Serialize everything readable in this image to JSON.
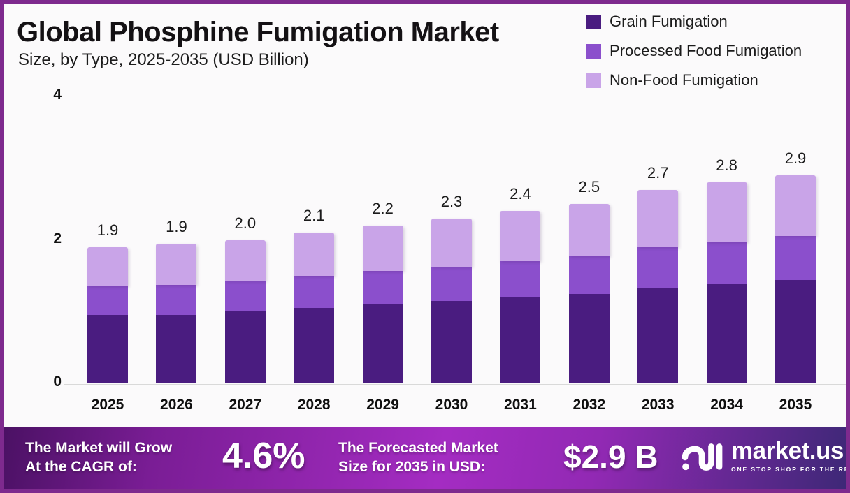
{
  "page": {
    "border_color": "#7E2A8E",
    "background": "#FBFAFB"
  },
  "header": {
    "title": "Global Phosphine Fumigation Market",
    "subtitle": "Size, by Type, 2025-2035 (USD Billion)"
  },
  "chart_data": {
    "type": "bar",
    "stacked": true,
    "title": "Global Phosphine Fumigation Market Size, by Type, 2025-2035 (USD Billion)",
    "categories": [
      "2025",
      "2026",
      "2027",
      "2028",
      "2029",
      "2030",
      "2031",
      "2032",
      "2033",
      "2034",
      "2035"
    ],
    "series": [
      {
        "name": "Grain Fumigation",
        "color": "#4A1C80",
        "values": [
          0.95,
          0.95,
          1.0,
          1.05,
          1.1,
          1.15,
          1.2,
          1.25,
          1.33,
          1.38,
          1.44
        ]
      },
      {
        "name": "Processed Food Fumigation",
        "color": "#8B4FCC",
        "values": [
          0.4,
          0.42,
          0.43,
          0.45,
          0.47,
          0.48,
          0.5,
          0.52,
          0.57,
          0.59,
          0.61
        ]
      },
      {
        "name": "Non-Food Fumigation",
        "color": "#C9A4E8",
        "values": [
          0.55,
          0.58,
          0.57,
          0.6,
          0.63,
          0.67,
          0.7,
          0.73,
          0.8,
          0.83,
          0.85
        ]
      }
    ],
    "total_labels": [
      "1.9",
      "1.9",
      "2.0",
      "2.1",
      "2.2",
      "2.3",
      "2.4",
      "2.5",
      "2.7",
      "2.8",
      "2.9"
    ],
    "xlabel": "",
    "ylabel": "",
    "ylim": [
      0,
      4
    ],
    "yticks": [
      0,
      2,
      4
    ],
    "grid": false,
    "legend_position": "top-right"
  },
  "footer": {
    "cagr_line1": "The Market will Grow",
    "cagr_line2": "At the CAGR of:",
    "cagr_value": "4.6%",
    "forecast_line1": "The Forecasted Market",
    "forecast_line2": "Size for 2035 in USD:",
    "forecast_value": "$2.9 B",
    "logo_name": "market.us",
    "logo_tagline": "ONE STOP SHOP FOR THE REPORTS"
  }
}
